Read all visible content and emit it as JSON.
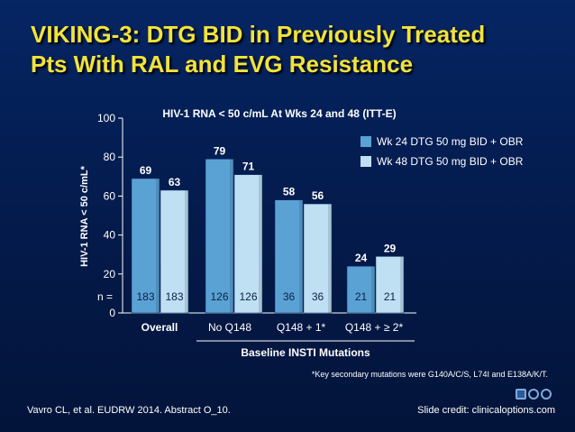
{
  "slide": {
    "title_line1": "VIKING-3: DTG BID in Previously Treated",
    "title_line2": "Pts With RAL and EVG Resistance",
    "footnote": "*Key secondary mutations were G140A/C/S, L74I and E138A/K/T.",
    "citation": "Vavro CL, et al. EUDRW 2014. Abstract O_10.",
    "credit": "Slide credit: clinicaloptions.com"
  },
  "chart_data": {
    "type": "bar",
    "title": "HIV-1 RNA < 50 c/mL At Wks 24 and 48 (ITT-E)",
    "ylabel": "HIV-1 RNA < 50 c/mL*",
    "xlabel": "Baseline INSTI Mutations",
    "ylim": [
      0,
      100
    ],
    "yticks": [
      0,
      20,
      40,
      60,
      80,
      100
    ],
    "categories": [
      "Overall",
      "No Q148",
      "Q148 + 1*",
      "Q148 + ≥ 2*"
    ],
    "n_label": "n =",
    "series": [
      {
        "name": "Wk 24 DTG 50 mg BID + OBR",
        "color": "#5aa2d4",
        "values": [
          69,
          79,
          58,
          24
        ],
        "n": [
          183,
          126,
          36,
          21
        ]
      },
      {
        "name": "Wk 48 DTG 50 mg BID + OBR",
        "color": "#bfe0f2",
        "values": [
          63,
          71,
          56,
          29
        ],
        "n": [
          183,
          126,
          36,
          21
        ]
      }
    ],
    "legend_position": "top-right"
  }
}
